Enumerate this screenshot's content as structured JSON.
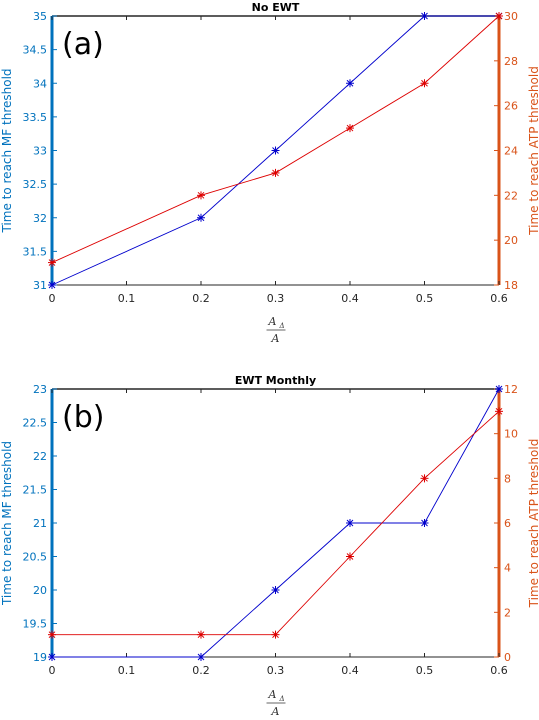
{
  "chart_data": [
    {
      "type": "line",
      "title": "No EWT",
      "panel_label": "(a)",
      "xlabel": {
        "num": "A",
        "num_sub": "Δ",
        "den": "A"
      },
      "ylabel_left": "Time to reach MF threshold",
      "ylabel_right": "Time to reach ATP threshold",
      "xlim": [
        0,
        0.6
      ],
      "xticks": [
        "0",
        "0.1",
        "0.2",
        "0.3",
        "0.4",
        "0.5",
        "0.6"
      ],
      "ylim_left": [
        31,
        35
      ],
      "yticks_left": [
        "31",
        "31.5",
        "32",
        "32.5",
        "33",
        "33.5",
        "34",
        "34.5",
        "35"
      ],
      "ylim_right": [
        18,
        30
      ],
      "yticks_right": [
        "18",
        "20",
        "22",
        "24",
        "26",
        "28",
        "30"
      ],
      "series": [
        {
          "axis": "left",
          "color": "#0000cc",
          "x": [
            0,
            0.2,
            0.3,
            0.4,
            0.5,
            0.6
          ],
          "y": [
            31,
            32,
            33,
            34,
            35,
            35
          ]
        },
        {
          "axis": "right",
          "color": "#dd0000",
          "x": [
            0,
            0.2,
            0.3,
            0.4,
            0.5,
            0.6
          ],
          "y": [
            19,
            22,
            23,
            25,
            27,
            30
          ]
        }
      ]
    },
    {
      "type": "line",
      "title": "EWT Monthly",
      "panel_label": "(b)",
      "xlabel": {
        "num": "A",
        "num_sub": "Δ",
        "den": "A"
      },
      "ylabel_left": "Time to reach MF threshold",
      "ylabel_right": "Time to reach ATP threshold",
      "xlim": [
        0,
        0.6
      ],
      "xticks": [
        "0",
        "0.1",
        "0.2",
        "0.3",
        "0.4",
        "0.5",
        "0.6"
      ],
      "ylim_left": [
        19,
        23
      ],
      "yticks_left": [
        "19",
        "19.5",
        "20",
        "20.5",
        "21",
        "21.5",
        "22",
        "22.5",
        "23"
      ],
      "ylim_right": [
        0,
        12
      ],
      "yticks_right": [
        "0",
        "2",
        "4",
        "6",
        "8",
        "10",
        "12"
      ],
      "series": [
        {
          "axis": "left",
          "color": "#0000cc",
          "x": [
            0,
            0.2,
            0.3,
            0.4,
            0.5,
            0.6
          ],
          "y": [
            19,
            19,
            20,
            21,
            21,
            23
          ]
        },
        {
          "axis": "right",
          "color": "#dd0000",
          "x": [
            0,
            0.2,
            0.3,
            0.4,
            0.5,
            0.6
          ],
          "y": [
            1,
            1,
            1,
            4.5,
            8,
            11
          ]
        }
      ]
    }
  ],
  "colors": {
    "left_axis": "#0072bd",
    "right_axis": "#d95319",
    "frame": "#262626"
  }
}
